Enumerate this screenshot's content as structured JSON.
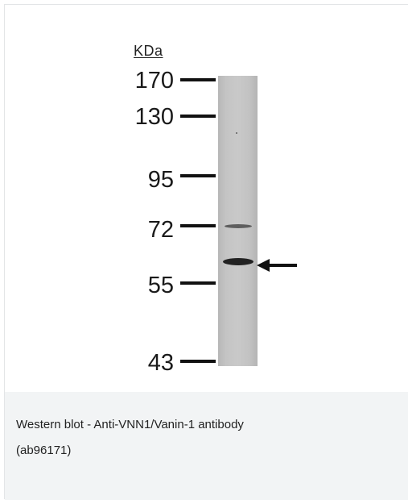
{
  "figure": {
    "unit_label": "KDa",
    "markers": [
      "170",
      "130",
      "95",
      "72",
      "55",
      "43"
    ],
    "arrow": "band-indicator-arrow"
  },
  "caption": {
    "line1": "Western blot - Anti-VNN1/Vanin-1 antibody",
    "line2": "(ab96171)"
  },
  "colors": {
    "caption_bg": "#f2f4f5",
    "lane": "#c4c4c4",
    "band": "#222222"
  }
}
